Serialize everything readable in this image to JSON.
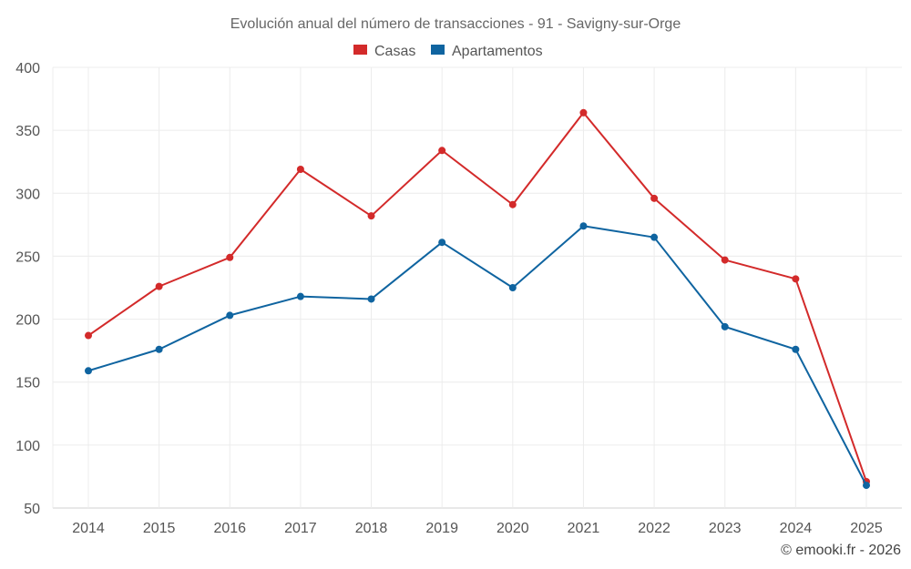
{
  "chart_data": {
    "type": "line",
    "title": "Evolución anual del número de transacciones - 91 - Savigny-sur-Orge",
    "categories": [
      "2014",
      "2015",
      "2016",
      "2017",
      "2018",
      "2019",
      "2020",
      "2021",
      "2022",
      "2023",
      "2024",
      "2025"
    ],
    "series": [
      {
        "name": "Casas",
        "color": "#d32a2a",
        "values": [
          187,
          226,
          249,
          319,
          282,
          334,
          291,
          364,
          296,
          247,
          232,
          71
        ]
      },
      {
        "name": "Apartamentos",
        "color": "#0f64a0",
        "values": [
          159,
          176,
          203,
          218,
          216,
          261,
          225,
          274,
          265,
          194,
          176,
          68
        ]
      }
    ],
    "ylim": [
      50,
      400
    ],
    "yticks": [
      50,
      100,
      150,
      200,
      250,
      300,
      350,
      400
    ],
    "xlabel": "",
    "ylabel": "",
    "grid": true,
    "legend": "top-center"
  },
  "credit": "© emooki.fr - 2026"
}
